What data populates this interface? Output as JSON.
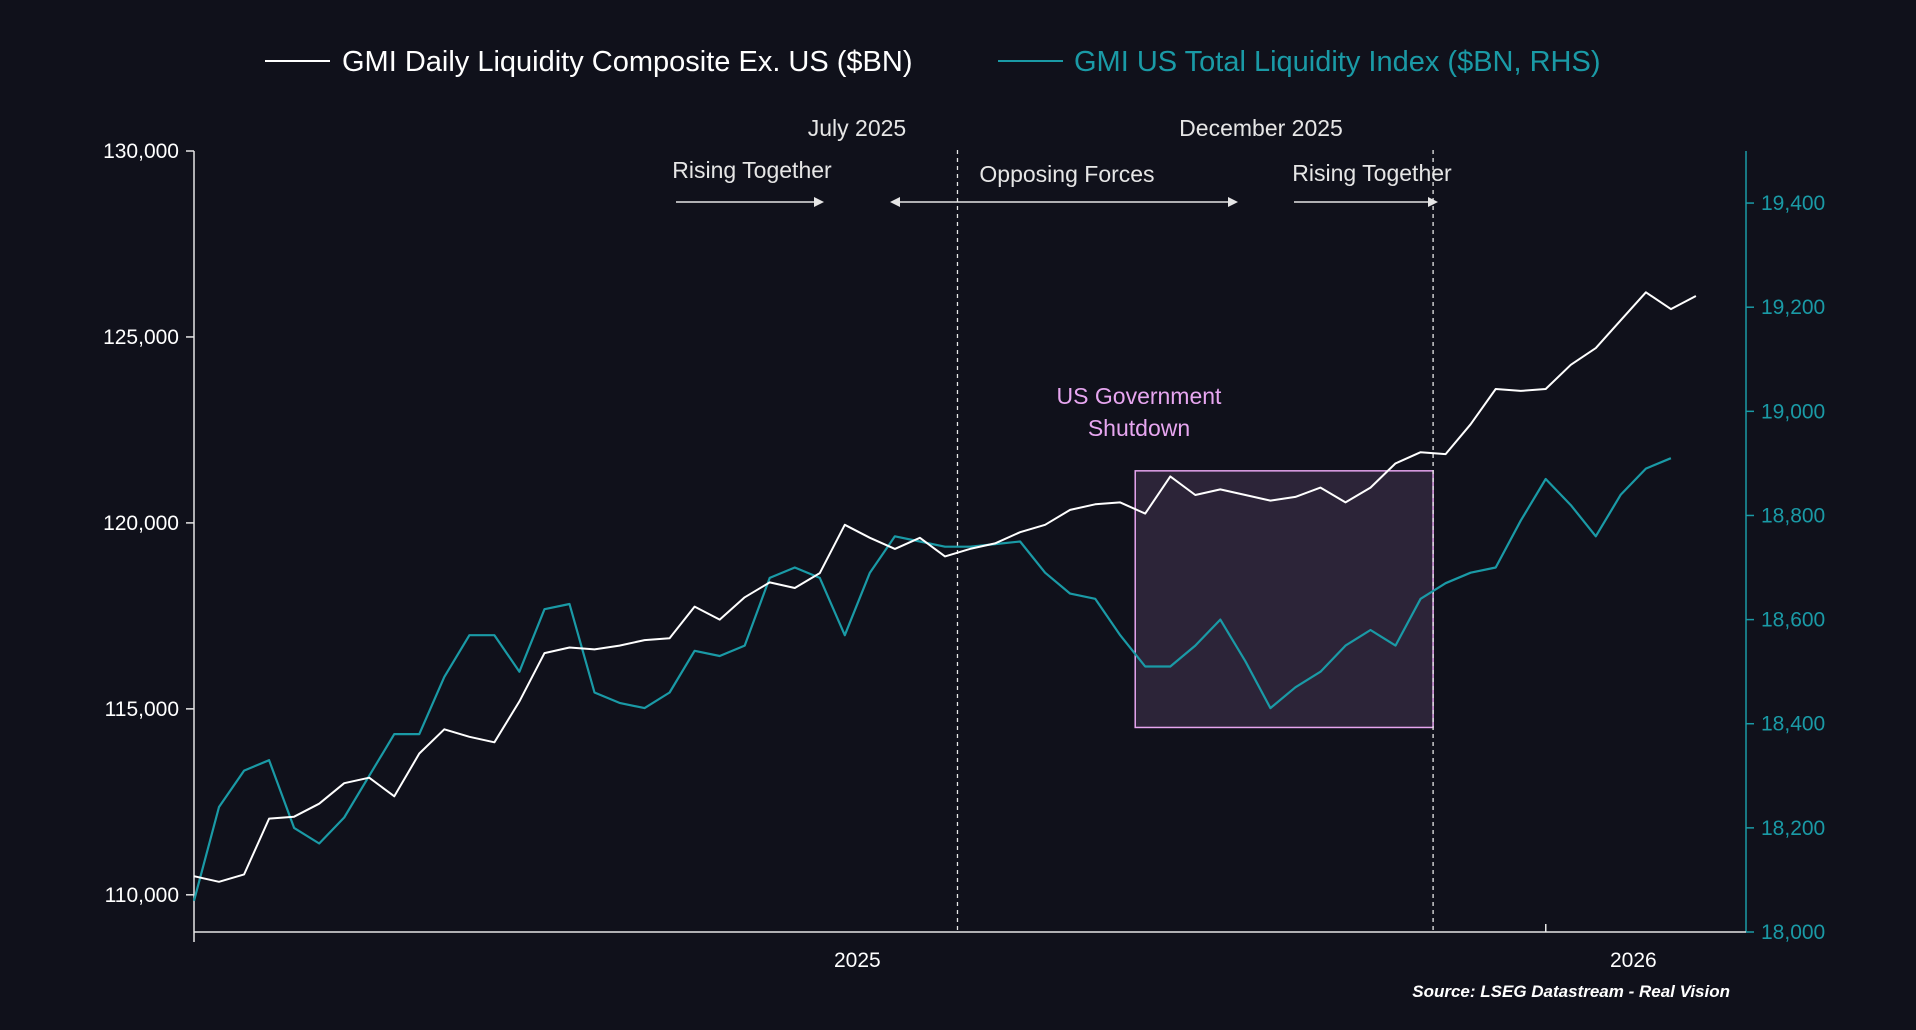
{
  "colors": {
    "background": "#10111b",
    "white_series": "#ffffff",
    "teal_series": "#1a9aa6",
    "shutdown": "#e7a6f0",
    "axis": "#e6e6e6"
  },
  "legend": {
    "white": "GMI Daily Liquidity Composite Ex. US ($BN)",
    "teal": "GMI US Total Liquidity Index ($BN, RHS)"
  },
  "annotations": {
    "july_label": "July 2025",
    "december_label": "December 2025",
    "rising_left": "Rising Together",
    "opposing": "Opposing Forces",
    "rising_right": "Rising Together",
    "shutdown_line1": "US Government",
    "shutdown_line2": "Shutdown"
  },
  "source": "Source: LSEG Datastream - Real Vision",
  "chart_data": {
    "type": "line",
    "title": "",
    "x_range": [
      0,
      62
    ],
    "x_ticks": [
      {
        "pos": 26.5,
        "label": "2025"
      },
      {
        "pos": 57.5,
        "label": "2026"
      }
    ],
    "x_tick_marks": [
      54
    ],
    "left_axis": {
      "ylim": [
        109000,
        130000
      ],
      "ticks": [
        110000,
        115000,
        120000,
        125000,
        130000
      ],
      "tick_labels": [
        "110,000",
        "115,000",
        "120,000",
        "125,000",
        "130,000"
      ]
    },
    "right_axis": {
      "ylim": [
        18000,
        19500
      ],
      "ticks": [
        18000,
        18200,
        18400,
        18600,
        18800,
        19000,
        19200,
        19400
      ],
      "tick_labels": [
        "18,000",
        "18,200",
        "18,400",
        "18,600",
        "18,800",
        "19,000",
        "19,200",
        "19,400"
      ]
    },
    "vlines": [
      {
        "x": 30.5,
        "label": "July 2025"
      },
      {
        "x": 49.5,
        "label": "December 2025"
      }
    ],
    "shutdown_period": {
      "x_start": 37.6,
      "x_end": 49.5,
      "y_low": 114500,
      "y_high": 121400
    },
    "series": [
      {
        "name": "GMI Daily Liquidity Composite Ex. US ($BN)",
        "axis": "left",
        "x": [
          0,
          1,
          2,
          3,
          4,
          5,
          6,
          7,
          8,
          9,
          10,
          11,
          12,
          13,
          14,
          15,
          16,
          17,
          18,
          19,
          20,
          21,
          22,
          23,
          24,
          25,
          26,
          27,
          28,
          29,
          30,
          31,
          32,
          33,
          34,
          35,
          36,
          37,
          38,
          39,
          40,
          41,
          42,
          43,
          44,
          45,
          46,
          47,
          48,
          49,
          50,
          51,
          52,
          53,
          54,
          55,
          56,
          57,
          58,
          59,
          60,
          61
        ],
        "values": [
          110500,
          110350,
          110550,
          112050,
          112100,
          112450,
          113000,
          113150,
          112650,
          113800,
          114450,
          114250,
          114100,
          115200,
          116500,
          116650,
          116600,
          116700,
          116850,
          116900,
          117750,
          117400,
          118000,
          118400,
          118250,
          118650,
          119950,
          119600,
          119300,
          119600,
          119100,
          119300,
          119450,
          119750,
          119950,
          120350,
          120500,
          120550,
          120250,
          121250,
          120750,
          120900,
          120750,
          120600,
          120700,
          120950,
          120550,
          120950,
          121600,
          121900,
          121850,
          122650,
          123600,
          123550,
          123600,
          124250,
          124700,
          125450,
          126200,
          125750,
          126100,
          null
        ]
      },
      {
        "name": "GMI US Total Liquidity Index ($BN, RHS)",
        "axis": "right",
        "x": [
          0,
          1,
          2,
          3,
          4,
          5,
          6,
          7,
          8,
          9,
          10,
          11,
          12,
          13,
          14,
          15,
          16,
          17,
          18,
          19,
          20,
          21,
          22,
          23,
          24,
          25,
          26,
          27,
          28,
          29,
          30,
          31,
          32,
          33,
          34,
          35,
          36,
          37,
          38,
          39,
          40,
          41,
          42,
          43,
          44,
          45,
          46,
          47,
          48,
          49,
          50,
          51,
          52,
          53,
          54,
          55,
          56,
          57,
          58,
          59,
          60,
          61
        ],
        "values": [
          18060,
          18240,
          18310,
          18330,
          18200,
          18170,
          18220,
          18300,
          18380,
          18380,
          18490,
          18570,
          18570,
          18500,
          18620,
          18630,
          18460,
          18440,
          18430,
          18460,
          18540,
          18530,
          18550,
          18680,
          18700,
          18680,
          18570,
          18690,
          18760,
          18750,
          18740,
          18740,
          18745,
          18750,
          18690,
          18650,
          18640,
          18570,
          18510,
          18510,
          18550,
          18600,
          18520,
          18430,
          18470,
          18500,
          18550,
          18580,
          18550,
          18640,
          18670,
          18690,
          18700,
          18790,
          18870,
          18820,
          18760,
          18840,
          18890,
          18910,
          null,
          null
        ]
      }
    ]
  }
}
